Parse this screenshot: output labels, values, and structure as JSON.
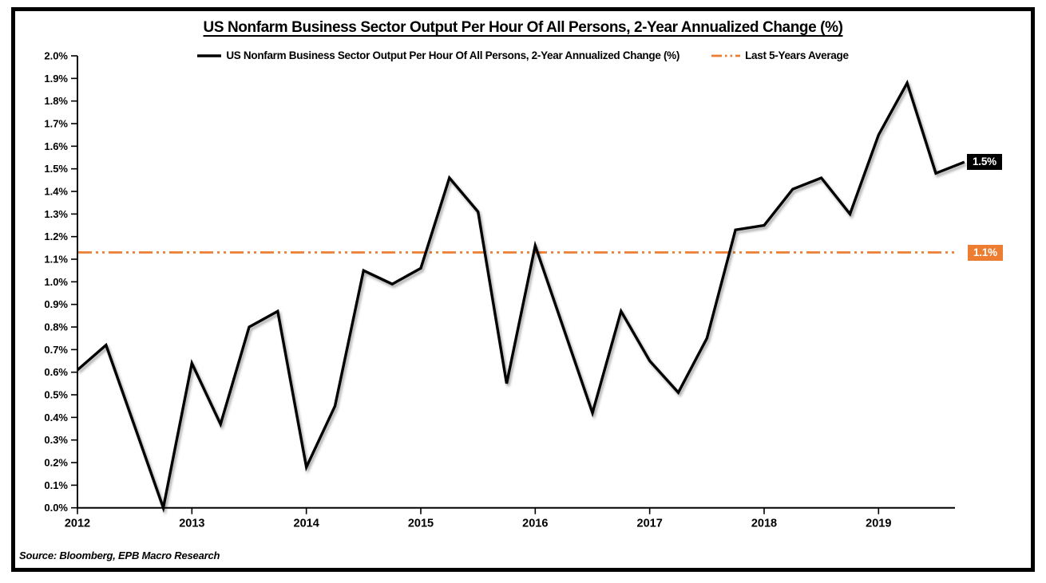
{
  "title": "US Nonfarm Business Sector Output Per Hour Of All Persons, 2-Year Annualized Change (%)",
  "legend": {
    "series_label": "US Nonfarm Business Sector Output Per Hour Of All Persons, 2-Year Annualized Change (%)",
    "average_label": "Last 5-Years Average"
  },
  "labels": {
    "last_value": "1.5%",
    "average_value": "1.1%"
  },
  "source": "Source: Bloomberg, EPB Macro Research",
  "colors": {
    "series": "#000000",
    "average": "#ED7D31",
    "label_text": "#FFFFFF",
    "axis": "#000000"
  },
  "chart_data": {
    "type": "line",
    "title": "US Nonfarm Business Sector Output Per Hour Of All Persons, 2-Year Annualized Change (%)",
    "xlabel": "",
    "ylabel": "",
    "frequency": "quarterly",
    "categories": [
      "2012 Q1",
      "2012 Q2",
      "2012 Q3",
      "2012 Q4",
      "2013 Q1",
      "2013 Q2",
      "2013 Q3",
      "2013 Q4",
      "2014 Q1",
      "2014 Q2",
      "2014 Q3",
      "2014 Q4",
      "2015 Q1",
      "2015 Q2",
      "2015 Q3",
      "2015 Q4",
      "2016 Q1",
      "2016 Q2",
      "2016 Q3",
      "2016 Q4",
      "2017 Q1",
      "2017 Q2",
      "2017 Q3",
      "2017 Q4",
      "2018 Q1",
      "2018 Q2",
      "2018 Q3",
      "2018 Q4",
      "2019 Q1",
      "2019 Q2",
      "2019 Q3",
      "2019 Q4"
    ],
    "x_tick_labels": [
      "2012",
      "2013",
      "2014",
      "2015",
      "2016",
      "2017",
      "2018",
      "2019"
    ],
    "series": [
      {
        "name": "US Nonfarm Business Sector Output Per Hour Of All Persons, 2-Year Annualized Change (%)",
        "color": "#000000",
        "values": [
          0.61,
          0.72,
          0.36,
          0.0,
          0.64,
          0.37,
          0.8,
          0.87,
          0.18,
          0.45,
          1.05,
          0.99,
          1.06,
          1.46,
          1.31,
          0.55,
          1.16,
          0.79,
          0.42,
          0.87,
          0.65,
          0.51,
          0.75,
          1.23,
          1.25,
          1.41,
          1.46,
          1.3,
          1.65,
          1.88,
          1.48,
          1.53
        ]
      },
      {
        "name": "Last 5-Years Average",
        "color": "#ED7D31",
        "style": "long-dash-dot-dot",
        "value": 1.13
      }
    ],
    "end_point_label": "1.5%",
    "average_line_label": "1.1%",
    "ylim": [
      0.0,
      2.0
    ],
    "y_tick_step": 0.1,
    "y_tick_suffix": "%",
    "grid": false,
    "legend_position": "top"
  }
}
